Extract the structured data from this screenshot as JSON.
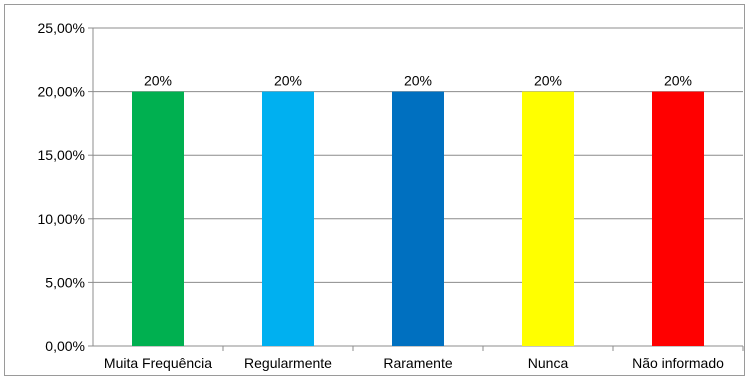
{
  "chart_data": {
    "type": "bar",
    "title": "",
    "xlabel": "",
    "ylabel": "",
    "categories": [
      "Muita Frequência",
      "Regularmente",
      "Raramente",
      "Nunca",
      "Não informado"
    ],
    "values": [
      20,
      20,
      20,
      20,
      20
    ],
    "data_labels": [
      "20%",
      "20%",
      "20%",
      "20%",
      "20%"
    ],
    "colors": [
      "#00b050",
      "#00b0f0",
      "#0070c0",
      "#ffff00",
      "#ff0000"
    ],
    "ylim": [
      0,
      25
    ],
    "yticks": [
      0,
      5,
      10,
      15,
      20,
      25
    ],
    "ytick_labels": [
      "0,00%",
      "5,00%",
      "10,00%",
      "15,00%",
      "20,00%",
      "25,00%"
    ],
    "grid": true,
    "legend": "none"
  }
}
